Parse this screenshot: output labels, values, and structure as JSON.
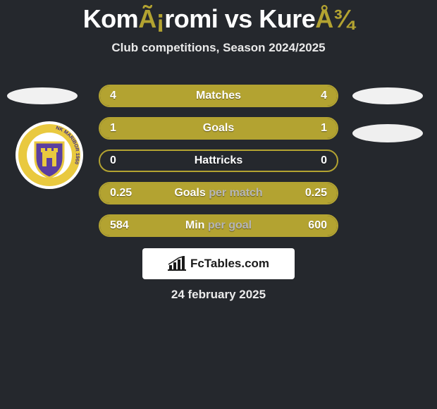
{
  "header": {
    "title_left": "Kom",
    "title_mid_accent": "Ã¡",
    "title_mid": "romi vs Kure",
    "title_right_accent": "Å¾",
    "subtitle": "Club competitions, Season 2024/2025"
  },
  "visual": {
    "background": "#25282d",
    "accent_olive": "#b3a331",
    "text_white": "#ffffff",
    "text_muted": "#b6b6b8",
    "ellipse_color": "#f1f1f1",
    "badge_bg": "#ffffff",
    "badge_text": "#1a1a1a",
    "crest": {
      "outer_bg": "#ffffff",
      "ring_bg": "#e9c93f",
      "ring_text": "#3f2f86",
      "shield_fill": "#5a3ea0",
      "shield_stroke": "#e9c93f",
      "castle_fill": "#e9c93f",
      "ring_label": "NK MARIBOR 1960"
    }
  },
  "bars": [
    {
      "label": "Matches",
      "left": "4",
      "right": "4",
      "fill_pct": 50,
      "right_pct": 50
    },
    {
      "label": "Goals",
      "left": "1",
      "right": "1",
      "fill_pct": 50,
      "right_pct": 50
    },
    {
      "label": "Hattricks",
      "left": "0",
      "right": "0",
      "fill_pct": 0,
      "right_pct": 0
    },
    {
      "label": "Goals per match",
      "left": "0.25",
      "right": "0.25",
      "fill_pct": 50,
      "right_pct": 50,
      "split_after": "Goals "
    },
    {
      "label": "Min per goal",
      "left": "584",
      "right": "600",
      "fill_pct": 50,
      "right_pct": 50,
      "split_after": "Min "
    }
  ],
  "bar_style": {
    "fill_color": "#b3a331",
    "border_color": "#b3a331",
    "height": 32,
    "radius": 16,
    "gap": 14,
    "font_size": 16
  },
  "footer": {
    "fctables_text": "FcTables.com",
    "date": "24 february 2025"
  }
}
